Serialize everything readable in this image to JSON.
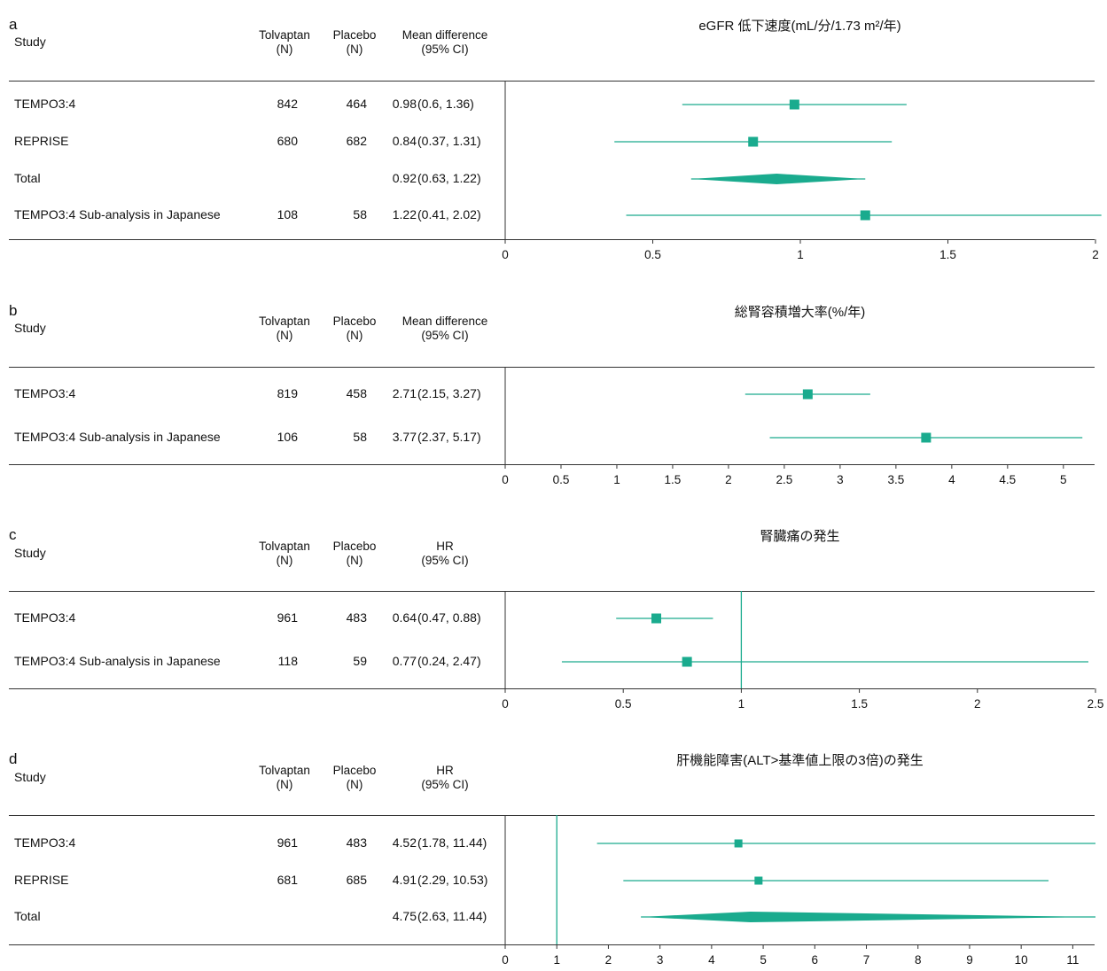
{
  "colors": {
    "accent": "#1aab8e",
    "axis": "#333333"
  },
  "headers": {
    "study": "Study",
    "tolvaptan": "Tolvaptan",
    "placebo": "Placebo",
    "n": "(N)",
    "mean_diff": "Mean difference",
    "hr": "HR",
    "ci": "(95% CI)"
  },
  "chart_data": [
    {
      "type": "forest",
      "panel": "a",
      "title": "eGFR 低下速度(mL/分/1.73 m²/年)",
      "effect_label": "Mean difference",
      "xlim": [
        0,
        2
      ],
      "ticks": [
        "0",
        "0.5",
        "1",
        "1.5",
        "2"
      ],
      "tick_values": [
        0,
        0.5,
        1,
        1.5,
        2
      ],
      "reference_line": null,
      "rows": [
        {
          "study": "TEMPO3:4",
          "tolvaptan_n": "842",
          "placebo_n": "464",
          "estimate_text": "0.98",
          "ci_text": "(0.6, 1.36)",
          "estimate": 0.98,
          "lower": 0.6,
          "upper": 1.36,
          "marker": "square"
        },
        {
          "study": "REPRISE",
          "tolvaptan_n": "680",
          "placebo_n": "682",
          "estimate_text": "0.84",
          "ci_text": "(0.37, 1.31)",
          "estimate": 0.84,
          "lower": 0.37,
          "upper": 1.31,
          "marker": "square"
        },
        {
          "study": "Total",
          "tolvaptan_n": "",
          "placebo_n": "",
          "estimate_text": "0.92",
          "ci_text": "(0.63, 1.22)",
          "estimate": 0.92,
          "lower": 0.63,
          "upper": 1.22,
          "marker": "diamond"
        },
        {
          "study": "TEMPO3:4 Sub-analysis in Japanese",
          "tolvaptan_n": "108",
          "placebo_n": "58",
          "estimate_text": "1.22",
          "ci_text": "(0.41, 2.02)",
          "estimate": 1.22,
          "lower": 0.41,
          "upper": 2.02,
          "marker": "square"
        }
      ]
    },
    {
      "type": "forest",
      "panel": "b",
      "title": "総腎容積増大率(%/年)",
      "effect_label": "Mean difference",
      "xlim": [
        0,
        5.2
      ],
      "ticks": [
        "0",
        "0.5",
        "1",
        "1.5",
        "2",
        "2.5",
        "3",
        "3.5",
        "4",
        "4.5",
        "5"
      ],
      "tick_values": [
        0,
        0.5,
        1,
        1.5,
        2,
        2.5,
        3,
        3.5,
        4,
        4.5,
        5
      ],
      "reference_line": null,
      "rows": [
        {
          "study": "TEMPO3:4",
          "tolvaptan_n": "819",
          "placebo_n": "458",
          "estimate_text": "2.71",
          "ci_text": "(2.15, 3.27)",
          "estimate": 2.71,
          "lower": 2.15,
          "upper": 3.27,
          "marker": "square"
        },
        {
          "study": "TEMPO3:4 Sub-analysis in Japanese",
          "tolvaptan_n": "106",
          "placebo_n": "58",
          "estimate_text": "3.77",
          "ci_text": "(2.37, 5.17)",
          "estimate": 3.77,
          "lower": 2.37,
          "upper": 5.17,
          "marker": "square"
        }
      ]
    },
    {
      "type": "forest",
      "panel": "c",
      "title": "腎臓痛の発生",
      "effect_label": "HR",
      "xlim": [
        0,
        2.5
      ],
      "ticks": [
        "0",
        "0.5",
        "1",
        "1.5",
        "2",
        "2.5"
      ],
      "tick_values": [
        0,
        0.5,
        1,
        1.5,
        2,
        2.5
      ],
      "reference_line": 1,
      "rows": [
        {
          "study": "TEMPO3:4",
          "tolvaptan_n": "961",
          "placebo_n": "483",
          "estimate_text": "0.64",
          "ci_text": "(0.47, 0.88)",
          "estimate": 0.64,
          "lower": 0.47,
          "upper": 0.88,
          "marker": "square"
        },
        {
          "study": "TEMPO3:4 Sub-analysis in Japanese",
          "tolvaptan_n": "118",
          "placebo_n": "59",
          "estimate_text": "0.77",
          "ci_text": "(0.24, 2.47)",
          "estimate": 0.77,
          "lower": 0.24,
          "upper": 2.47,
          "marker": "square"
        }
      ]
    },
    {
      "type": "forest",
      "panel": "d",
      "title": "肝機能障害(ALT>基準値上限の3倍)の発生",
      "effect_label": "HR",
      "xlim": [
        0,
        11.44
      ],
      "ticks": [
        "0",
        "1",
        "2",
        "3",
        "4",
        "5",
        "6",
        "7",
        "8",
        "9",
        "10",
        "11"
      ],
      "tick_values": [
        0,
        1,
        2,
        3,
        4,
        5,
        6,
        7,
        8,
        9,
        10,
        11
      ],
      "reference_line": 1,
      "rows": [
        {
          "study": "TEMPO3:4",
          "tolvaptan_n": "961",
          "placebo_n": "483",
          "estimate_text": "4.52",
          "ci_text": "(1.78, 11.44)",
          "estimate": 4.52,
          "lower": 1.78,
          "upper": 11.44,
          "marker": "square-small"
        },
        {
          "study": "REPRISE",
          "tolvaptan_n": "681",
          "placebo_n": "685",
          "estimate_text": "4.91",
          "ci_text": "(2.29, 10.53)",
          "estimate": 4.91,
          "lower": 2.29,
          "upper": 10.53,
          "marker": "square-small"
        },
        {
          "study": "Total",
          "tolvaptan_n": "",
          "placebo_n": "",
          "estimate_text": "4.75",
          "ci_text": "(2.63, 11.44)",
          "estimate": 4.75,
          "lower": 2.63,
          "upper": 11.44,
          "marker": "diamond"
        }
      ]
    }
  ]
}
